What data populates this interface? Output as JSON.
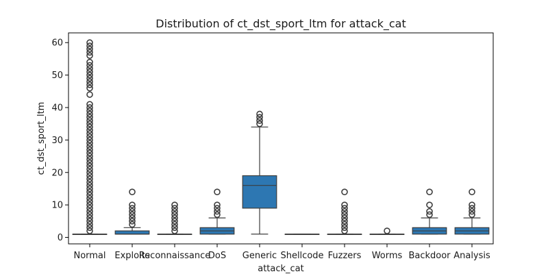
{
  "chart_data": {
    "type": "box",
    "title": "Distribution of ct_dst_sport_ltm for attack_cat",
    "xlabel": "attack_cat",
    "ylabel": "ct_dst_sport_ltm",
    "categories": [
      "Normal",
      "Exploits",
      "Reconnaissance",
      "DoS",
      "Generic",
      "Shellcode",
      "Fuzzers",
      "Worms",
      "Backdoor",
      "Analysis"
    ],
    "yticks": [
      0,
      10,
      20,
      30,
      40,
      50,
      60
    ],
    "ylim": [
      -2,
      63
    ],
    "box_color": "#2d77b2",
    "line_color": "#3d3d3d",
    "grid": false,
    "boxes": [
      {
        "min": 1,
        "q1": 1,
        "median": 1,
        "q3": 1,
        "max": 1,
        "outliers": [
          2,
          3,
          4,
          5,
          6,
          7,
          8,
          9,
          10,
          11,
          12,
          13,
          14,
          15,
          16,
          17,
          18,
          19,
          20,
          21,
          22,
          23,
          24,
          25,
          26,
          27,
          28,
          29,
          30,
          31,
          32,
          33,
          34,
          35,
          36,
          37,
          38,
          39,
          40,
          41,
          44,
          46,
          47,
          48,
          49,
          50,
          51,
          52,
          53,
          54,
          56,
          57,
          58,
          59,
          60
        ]
      },
      {
        "min": 1,
        "q1": 1,
        "median": 1,
        "q3": 2,
        "max": 3,
        "outliers": [
          4,
          5,
          6,
          7,
          8,
          9,
          10,
          14
        ]
      },
      {
        "min": 1,
        "q1": 1,
        "median": 1,
        "q3": 1,
        "max": 1,
        "outliers": [
          2,
          3,
          4,
          5,
          6,
          7,
          8,
          9,
          10
        ]
      },
      {
        "min": 1,
        "q1": 1,
        "median": 2,
        "q3": 3,
        "max": 6,
        "outliers": [
          7,
          8,
          9,
          10,
          14
        ]
      },
      {
        "min": 1,
        "q1": 9,
        "median": 16,
        "q3": 19,
        "max": 34,
        "outliers": [
          35,
          36,
          37,
          38
        ]
      },
      {
        "min": 1,
        "q1": 1,
        "median": 1,
        "q3": 1,
        "max": 1,
        "outliers": []
      },
      {
        "min": 1,
        "q1": 1,
        "median": 1,
        "q3": 1,
        "max": 1,
        "outliers": [
          2,
          3,
          4,
          5,
          6,
          7,
          8,
          9,
          10,
          14
        ]
      },
      {
        "min": 1,
        "q1": 1,
        "median": 1,
        "q3": 1,
        "max": 1,
        "outliers": [
          2
        ]
      },
      {
        "min": 1,
        "q1": 1,
        "median": 2,
        "q3": 3,
        "max": 6,
        "outliers": [
          7,
          8,
          10,
          14
        ]
      },
      {
        "min": 1,
        "q1": 1,
        "median": 2,
        "q3": 3,
        "max": 6,
        "outliers": [
          7,
          8,
          9,
          10,
          14
        ]
      }
    ]
  }
}
